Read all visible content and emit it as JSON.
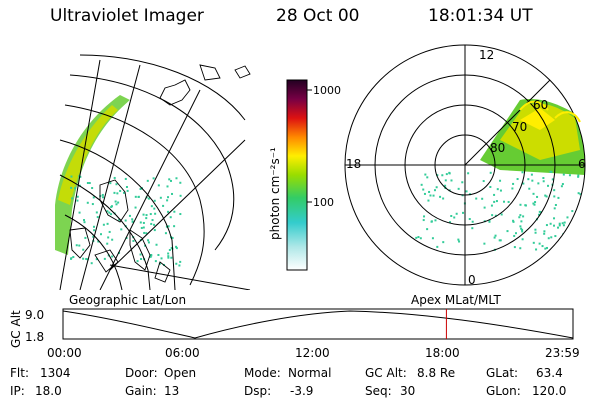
{
  "header": {
    "instrument": "Ultraviolet Imager",
    "date": "28 Oct 00",
    "time": "18:01:34 UT"
  },
  "colorbar": {
    "unit_label": "photon cm⁻²s⁻¹",
    "tick_high": "1000",
    "tick_mid": "100"
  },
  "geo_panel": {
    "caption": "Geographic Lat/Lon"
  },
  "polar_panel": {
    "caption": "Apex MLat/MLT",
    "mlt_top": "12",
    "mlt_bottom": "0",
    "mlt_left": "18",
    "mlt_right": "6",
    "lat_60": "60",
    "lat_70": "70",
    "lat_80": "80"
  },
  "altitude_plot": {
    "ylabel": "GC Alt",
    "y_high": "9.0",
    "y_low": "1.8",
    "times": [
      "00:00",
      "06:00",
      "12:00",
      "18:00",
      "23:59"
    ],
    "marker_time_hours": 18.03
  },
  "status": {
    "flt_label": "Flt:",
    "flt_value": "1304",
    "ip_label": "IP:",
    "ip_value": "18.0",
    "door_label": "Door:",
    "door_value": "Open",
    "gain_label": "Gain:",
    "gain_value": "13",
    "mode_label": "Mode:",
    "mode_value": "Normal",
    "dsp_label": "Dsp:",
    "dsp_value": "-3.9",
    "gcalt_label": "GC Alt:",
    "gcalt_value": "8.8 Re",
    "seq_label": "Seq:",
    "seq_value": "30",
    "glat_label": "GLat:",
    "glat_value": "63.4",
    "glon_label": "GLon:",
    "glon_value": "120.0"
  },
  "colors": {
    "marker": "#cc0000",
    "aurora_green": "#33cc33",
    "aurora_yellow": "#ccdd00",
    "aurora_cyan": "#33ccaa"
  }
}
